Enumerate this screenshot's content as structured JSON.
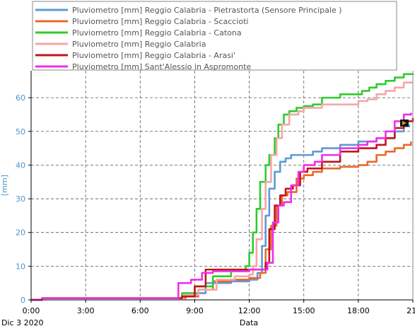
{
  "chart_data": {
    "type": "line",
    "xlabel": "Data",
    "ylabel": "[mm]",
    "date_label": "Dic 3 2020",
    "xlim": [
      0,
      21
    ],
    "ylim": [
      0,
      68
    ],
    "x_ticks": [
      {
        "v": 0,
        "label": "0:00"
      },
      {
        "v": 3,
        "label": "3:00"
      },
      {
        "v": 6,
        "label": "6:00"
      },
      {
        "v": 9,
        "label": "9:00"
      },
      {
        "v": 12,
        "label": "12:00"
      },
      {
        "v": 15,
        "label": "15:00"
      },
      {
        "v": 18,
        "label": "18:00"
      },
      {
        "v": 21,
        "label": "21:"
      }
    ],
    "y_ticks": [
      0,
      10,
      20,
      30,
      40,
      50,
      60
    ],
    "grid": true,
    "legend_position": "top",
    "colors": {
      "y_axis_text": "#4a95c7",
      "legend_box": "#888888",
      "grid": "#555555"
    },
    "series": [
      {
        "name": "Pluviometro [mm] Reggio Calabria - Pietrastorta  (Sensore Principale )",
        "color": "#5b9bd5",
        "x": [
          0,
          0.6,
          7.9,
          8.3,
          9.0,
          9.6,
          11.0,
          12.0,
          12.45,
          12.7,
          12.9,
          13.1,
          13.4,
          13.7,
          14.0,
          14.3,
          15.0,
          15.5,
          16.0,
          17.0,
          18.0,
          19.0,
          20.0,
          20.5,
          20.8
        ],
        "y": [
          0,
          0.5,
          0.5,
          1,
          2,
          5,
          5.5,
          6,
          8,
          16,
          25,
          33,
          38,
          41,
          42,
          43,
          43,
          44,
          45,
          46,
          47,
          48,
          50,
          51.5,
          52
        ]
      },
      {
        "name": "Pluviometro [mm] Reggio Calabria - Scaccioti",
        "color": "#e8692a",
        "x": [
          0,
          0.6,
          7.9,
          8.5,
          9.2,
          10.0,
          11.0,
          12.0,
          12.6,
          12.9,
          13.2,
          13.5,
          13.8,
          14.1,
          14.6,
          15.0,
          15.5,
          16.0,
          17.0,
          18.0,
          18.5,
          19.0,
          19.5,
          20.0,
          20.5,
          20.9
        ],
        "y": [
          0,
          0.5,
          0.5,
          1,
          3,
          5.5,
          6,
          6.5,
          8,
          15,
          22,
          28,
          31,
          32,
          36,
          37,
          38,
          39,
          39.5,
          40,
          41,
          43,
          44,
          45,
          46,
          47
        ]
      },
      {
        "name": "Pluviometro [mm] Reggio Calabria - Catona",
        "color": "#2ecc2e",
        "x": [
          0,
          0.6,
          7.9,
          8.3,
          9.0,
          10.0,
          11.0,
          11.8,
          12.0,
          12.2,
          12.4,
          12.6,
          12.9,
          13.1,
          13.4,
          13.6,
          13.9,
          14.2,
          14.6,
          15.0,
          15.5,
          16.0,
          17.0,
          17.8,
          18.2,
          18.6,
          19.0,
          19.5,
          20.0,
          20.5,
          21.0
        ],
        "y": [
          0,
          0.5,
          0.5,
          2,
          4,
          7,
          8.5,
          10,
          14,
          20,
          27,
          35,
          40,
          43,
          48,
          52,
          55,
          56,
          57,
          57.5,
          58,
          60,
          61,
          61,
          62,
          63,
          64,
          65,
          66,
          67,
          67.2
        ]
      },
      {
        "name": "Pluviometro [mm] Reggio Calabria",
        "color": "#f4a7a7",
        "x": [
          0,
          0.6,
          7.9,
          8.4,
          9.2,
          10.2,
          11.2,
          12.0,
          12.2,
          12.4,
          12.7,
          12.9,
          13.2,
          13.5,
          13.8,
          14.2,
          14.7,
          15.0,
          15.5,
          16.0,
          17.0,
          18.0,
          18.5,
          19.0,
          19.5,
          20.0,
          20.5,
          21.0
        ],
        "y": [
          0,
          0.5,
          0.5,
          1.5,
          3,
          6,
          7,
          7.5,
          10,
          18,
          27,
          35,
          43,
          48,
          52,
          55,
          56,
          57,
          57,
          58,
          58,
          59,
          59.5,
          61,
          62,
          63,
          64.5,
          64.5
        ]
      },
      {
        "name": "Pluviometro [mm] Reggio Calabria - Arasi'",
        "color": "#c0141e",
        "x": [
          0,
          0.6,
          7.9,
          8.3,
          9.0,
          9.6,
          10.5,
          11.5,
          12.0,
          12.6,
          12.9,
          13.1,
          13.4,
          13.7,
          14.0,
          14.4,
          14.8,
          15.2,
          16.0,
          17.0,
          18.0,
          19.0,
          19.5,
          20.0,
          20.5,
          21.0
        ],
        "y": [
          0,
          0.5,
          0.5,
          1,
          4,
          9,
          9,
          9,
          9,
          9,
          11,
          21,
          28,
          31,
          33,
          34,
          38,
          39,
          41,
          44,
          45,
          46,
          48,
          51,
          53,
          54
        ]
      },
      {
        "name": "Pluviometro [mm] Sant'Alessio in Aspromonte",
        "color": "#ee2fe6",
        "x": [
          0,
          0.6,
          7.9,
          8.1,
          8.8,
          9.4,
          10.0,
          11.0,
          12.0,
          12.7,
          13.0,
          13.3,
          13.6,
          13.9,
          14.3,
          14.7,
          15.0,
          15.6,
          16.0,
          17.0,
          18.0,
          18.5,
          19.0,
          19.5,
          20.0,
          20.5,
          20.9
        ],
        "y": [
          0,
          0.5,
          0.5,
          5,
          6,
          8,
          8.5,
          8.5,
          9,
          9,
          11,
          23,
          28,
          29,
          34,
          38,
          40,
          41,
          43,
          45,
          46,
          47,
          48,
          50,
          53,
          55,
          55.5
        ]
      }
    ]
  }
}
